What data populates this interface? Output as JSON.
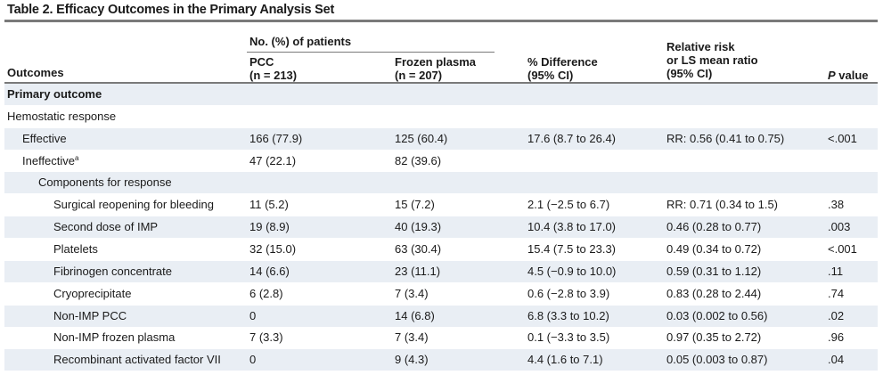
{
  "title": "Table 2. Efficacy Outcomes in the Primary Analysis Set",
  "header": {
    "outcomes": "Outcomes",
    "group": "No. (%) of patients",
    "pcc_line1": "PCC",
    "pcc_line2": "(n = 213)",
    "fp_line1": "Frozen plasma",
    "fp_line2": "(n = 207)",
    "diff_line1": "% Difference",
    "diff_line2": "(95% CI)",
    "rr_line1": "Relative risk",
    "rr_line2": "or LS mean ratio",
    "rr_line3": "(95% CI)",
    "pval_p": "P",
    "pval_rest": " value"
  },
  "rows": [
    {
      "label": "Primary outcome",
      "sup": "",
      "indent": 0,
      "bold": true,
      "pcc": "",
      "fp": "",
      "diff": "",
      "rr": "",
      "p": ""
    },
    {
      "label": "Hemostatic response",
      "sup": "",
      "indent": 0,
      "bold": false,
      "pcc": "",
      "fp": "",
      "diff": "",
      "rr": "",
      "p": ""
    },
    {
      "label": "Effective",
      "sup": "",
      "indent": 1,
      "bold": false,
      "pcc": "166 (77.9)",
      "fp": "125 (60.4)",
      "diff": "17.6 (8.7 to 26.4)",
      "rr": "RR: 0.56 (0.41 to 0.75)",
      "p": "<.001"
    },
    {
      "label": "Ineffective",
      "sup": "a",
      "indent": 1,
      "bold": false,
      "pcc": "47 (22.1)",
      "fp": "82 (39.6)",
      "diff": "",
      "rr": "",
      "p": ""
    },
    {
      "label": "Components for response",
      "sup": "",
      "indent": 2,
      "bold": false,
      "pcc": "",
      "fp": "",
      "diff": "",
      "rr": "",
      "p": ""
    },
    {
      "label": "Surgical reopening for bleeding",
      "sup": "",
      "indent": 3,
      "bold": false,
      "pcc": "11 (5.2)",
      "fp": "15 (7.2)",
      "diff": "2.1 (−2.5 to 6.7)",
      "rr": "RR: 0.71 (0.34 to 1.5)",
      "p": ".38"
    },
    {
      "label": "Second dose of IMP",
      "sup": "",
      "indent": 3,
      "bold": false,
      "pcc": "19 (8.9)",
      "fp": "40 (19.3)",
      "diff": "10.4 (3.8 to 17.0)",
      "rr": "0.46 (0.28 to 0.77)",
      "p": ".003"
    },
    {
      "label": "Platelets",
      "sup": "",
      "indent": 3,
      "bold": false,
      "pcc": "32 (15.0)",
      "fp": "63 (30.4)",
      "diff": "15.4 (7.5 to 23.3)",
      "rr": "0.49 (0.34 to 0.72)",
      "p": "<.001"
    },
    {
      "label": "Fibrinogen concentrate",
      "sup": "",
      "indent": 3,
      "bold": false,
      "pcc": "14 (6.6)",
      "fp": "23 (11.1)",
      "diff": "4.5 (−0.9 to 10.0)",
      "rr": "0.59 (0.31 to 1.12)",
      "p": ".11"
    },
    {
      "label": "Cryoprecipitate",
      "sup": "",
      "indent": 3,
      "bold": false,
      "pcc": "6 (2.8)",
      "fp": "7 (3.4)",
      "diff": "0.6 (−2.8 to 3.9)",
      "rr": "0.83 (0.28 to 2.44)",
      "p": ".74"
    },
    {
      "label": "Non-IMP PCC",
      "sup": "",
      "indent": 3,
      "bold": false,
      "pcc": "0",
      "fp": "14 (6.8)",
      "diff": "6.8 (3.3 to 10.2)",
      "rr": "0.03 (0.002 to 0.56)",
      "p": ".02"
    },
    {
      "label": "Non-IMP frozen plasma",
      "sup": "",
      "indent": 3,
      "bold": false,
      "pcc": "7 (3.3)",
      "fp": "7 (3.4)",
      "diff": "0.1 (−3.3 to 3.5)",
      "rr": "0.97 (0.35 to 2.72)",
      "p": ".96"
    },
    {
      "label": "Recombinant activated factor VII",
      "sup": "",
      "indent": 3,
      "bold": false,
      "pcc": "0",
      "fp": "9 (4.3)",
      "diff": "4.4 (1.6 to 7.1)",
      "rr": "0.05 (0.003 to 0.87)",
      "p": ".04"
    }
  ]
}
